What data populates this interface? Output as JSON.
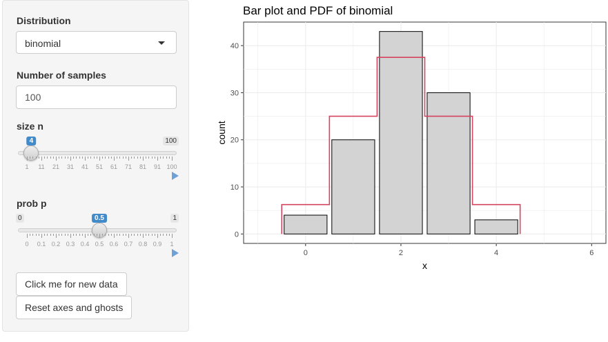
{
  "sidebar": {
    "distribution": {
      "label": "Distribution",
      "selected": "binomial"
    },
    "samples": {
      "label": "Number of samples",
      "value": "100"
    },
    "size_slider": {
      "label": "size n",
      "min": 1,
      "max": 100,
      "value": 4,
      "min_label": "",
      "max_label": "100",
      "value_label": "4",
      "ticks": [
        "1",
        "11",
        "21",
        "31",
        "41",
        "51",
        "61",
        "71",
        "81",
        "91",
        "100"
      ]
    },
    "prob_slider": {
      "label": "prob p",
      "min": 0,
      "max": 1,
      "value": 0.5,
      "min_label": "0",
      "max_label": "1",
      "value_label": "0.5",
      "ticks": [
        "0",
        "0.1",
        "0.2",
        "0.3",
        "0.4",
        "0.5",
        "0.6",
        "0.7",
        "0.8",
        "0.9",
        "1"
      ]
    },
    "buttons": {
      "new_data": "Click me for new data",
      "reset": "Reset axes and ghosts"
    }
  },
  "colors": {
    "bar_fill": "#d3d3d3",
    "bar_stroke": "#000000",
    "pdf_line": "#d6435e",
    "grid": "#ebebeb",
    "slider_accent": "#428bca"
  },
  "chart_data": {
    "type": "bar",
    "title": "Bar plot and PDF of binomial",
    "xlabel": "x",
    "ylabel": "count",
    "x_ticks": [
      0,
      2,
      4,
      6
    ],
    "y_ticks": [
      0,
      10,
      20,
      30,
      40
    ],
    "xlim": [
      -1.3,
      6.3
    ],
    "ylim": [
      -2,
      45
    ],
    "grid": true,
    "series": [
      {
        "type": "bar",
        "x": [
          0,
          1,
          2,
          3,
          4
        ],
        "values": [
          4,
          20,
          43,
          30,
          3
        ]
      },
      {
        "type": "step",
        "x": [
          0,
          1,
          2,
          3,
          4
        ],
        "values": [
          6.25,
          25,
          37.5,
          25,
          6.25
        ]
      }
    ]
  }
}
